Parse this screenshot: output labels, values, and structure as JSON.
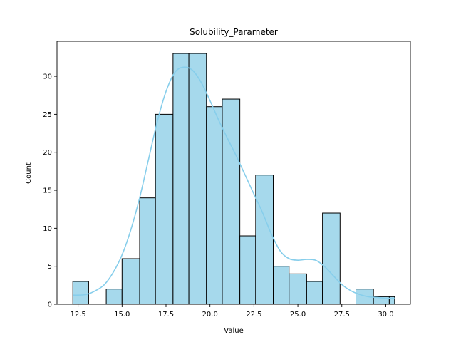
{
  "chart_data": {
    "type": "bar",
    "subtype": "histogram",
    "title": "Solubility_Parameter",
    "xlabel": "Value",
    "ylabel": "Count",
    "bin_edges": [
      12.2,
      13.1,
      14.1,
      15.0,
      16.0,
      16.9,
      17.9,
      18.8,
      19.8,
      20.7,
      21.7,
      22.6,
      23.6,
      24.5,
      25.5,
      26.4,
      27.4,
      28.3,
      29.3,
      30.2,
      30.5
    ],
    "counts": [
      3,
      0,
      2,
      6,
      14,
      25,
      33,
      33,
      26,
      27,
      9,
      17,
      5,
      4,
      3,
      12,
      0,
      2,
      1,
      1
    ],
    "xlim": [
      11.3,
      31.4
    ],
    "ylim": [
      0,
      34.6
    ],
    "xticks": [
      12.5,
      15.0,
      17.5,
      20.0,
      22.5,
      25.0,
      27.5,
      30.0
    ],
    "xtick_labels": [
      "12.5",
      "15.0",
      "17.5",
      "20.0",
      "22.5",
      "25.0",
      "27.5",
      "30.0"
    ],
    "yticks": [
      0,
      5,
      10,
      15,
      20,
      25,
      30
    ],
    "ytick_labels": [
      "0",
      "5",
      "10",
      "15",
      "20",
      "25",
      "30"
    ],
    "kde": {
      "x": [
        12.2,
        12.5,
        13.0,
        13.5,
        14.0,
        14.5,
        15.0,
        15.5,
        16.0,
        16.5,
        17.0,
        17.5,
        18.0,
        18.5,
        19.0,
        19.5,
        20.0,
        20.5,
        21.0,
        21.5,
        22.0,
        22.5,
        23.0,
        23.5,
        24.0,
        24.5,
        25.0,
        25.5,
        26.0,
        26.5,
        27.0,
        27.5,
        28.0,
        28.5,
        29.0,
        29.5,
        30.0,
        30.5
      ],
      "y": [
        1.2,
        1.2,
        1.3,
        1.8,
        2.6,
        4.2,
        6.5,
        9.8,
        14.0,
        19.0,
        24.0,
        28.0,
        30.5,
        31.2,
        30.8,
        29.2,
        26.8,
        24.2,
        21.8,
        19.5,
        17.0,
        14.5,
        12.0,
        9.2,
        7.0,
        6.0,
        5.8,
        5.9,
        5.8,
        5.0,
        3.8,
        2.6,
        1.8,
        1.3,
        1.0,
        0.9,
        0.8,
        0.8
      ]
    },
    "grid": false,
    "legend": "none",
    "colors": {
      "bar_fill": "#a6d9ec",
      "bar_edge": "#000000",
      "kde_line": "#87ceeb"
    }
  }
}
